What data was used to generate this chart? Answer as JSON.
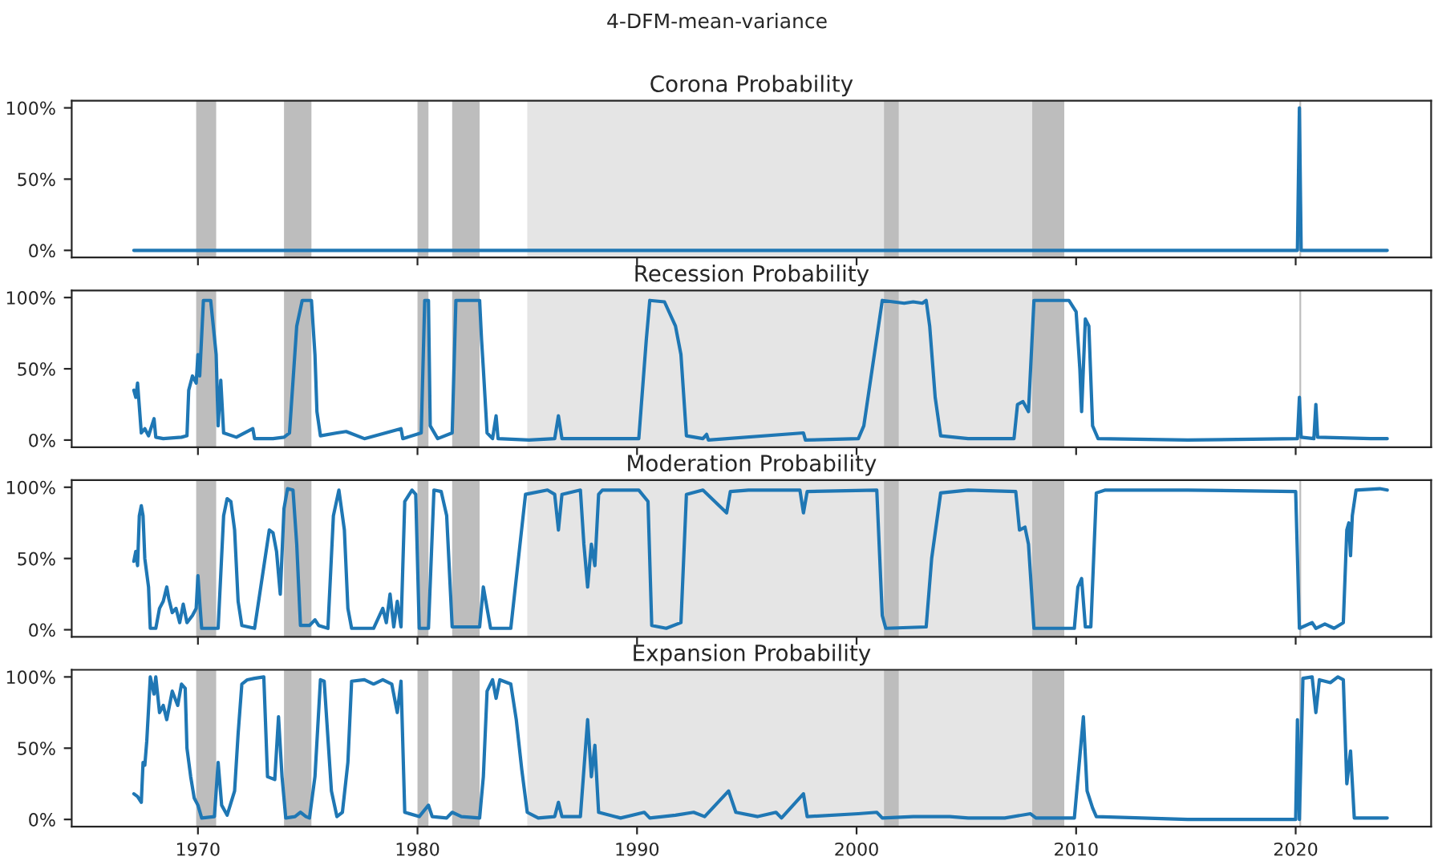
{
  "chart_data": [
    {
      "type": "line",
      "title": "Corona Probability",
      "annotations": [
        "4-DFM-mean-variance"
      ],
      "xlim": [
        1964.25,
        2026.17
      ],
      "xticks": [
        1970,
        1980,
        1990,
        2000,
        2010,
        2020
      ],
      "ylim": [
        -5,
        105
      ],
      "yticks": [
        {
          "value": 0,
          "label": "0%"
        },
        {
          "value": 50,
          "label": "50%"
        },
        {
          "value": 100,
          "label": "100%"
        }
      ],
      "tick_labels": "y",
      "grid": false,
      "legend": false,
      "series": [
        {
          "color": "#1f77b4",
          "x": [
            1967.08,
            2020.08,
            2020.17,
            2020.25,
            2024.17
          ],
          "values": [
            0,
            0,
            100,
            0,
            0
          ]
        }
      ],
      "bands": [
        {
          "axis": "x",
          "from": 1985.0,
          "to": 2008.0,
          "color": "#e5e5e5"
        },
        {
          "axis": "x",
          "from": 1969.92,
          "to": 1970.83,
          "color": "#bdbdbd"
        },
        {
          "axis": "x",
          "from": 1973.92,
          "to": 1975.17,
          "color": "#bdbdbd"
        },
        {
          "axis": "x",
          "from": 1980.0,
          "to": 1980.5,
          "color": "#bdbdbd"
        },
        {
          "axis": "x",
          "from": 1981.58,
          "to": 1982.83,
          "color": "#bdbdbd"
        },
        {
          "axis": "x",
          "from": 2001.25,
          "to": 2001.92,
          "color": "#bdbdbd"
        },
        {
          "axis": "x",
          "from": 2008.0,
          "to": 2009.46,
          "color": "#bdbdbd"
        },
        {
          "axis": "x",
          "from": 2020.17,
          "to": 2020.25,
          "color": "#bdbdbd"
        }
      ]
    },
    {
      "type": "line",
      "title": "Recession Probability",
      "xlim": [
        1964.25,
        2026.17
      ],
      "xticks": [
        1970,
        1980,
        1990,
        2000,
        2010,
        2020
      ],
      "ylim": [
        -5,
        105
      ],
      "yticks": [
        {
          "value": 0,
          "label": "0%"
        },
        {
          "value": 50,
          "label": "50%"
        },
        {
          "value": 100,
          "label": "100%"
        }
      ],
      "tick_labels": "y",
      "grid": false,
      "legend": false,
      "series": [
        {
          "color": "#1f77b4",
          "x": [
            1967.08,
            1967.17,
            1967.25,
            1967.42,
            1967.58,
            1967.75,
            1968.0,
            1968.08,
            1968.42,
            1969.25,
            1969.5,
            1969.58,
            1969.75,
            1969.92,
            1970.0,
            1970.08,
            1970.25,
            1970.58,
            1970.83,
            1970.92,
            1971.04,
            1971.17,
            1971.75,
            1972.5,
            1972.58,
            1973.42,
            1973.92,
            1974.17,
            1974.5,
            1974.75,
            1975.17,
            1975.33,
            1975.42,
            1975.58,
            1976.33,
            1976.75,
            1977.58,
            1979.25,
            1979.33,
            1980.17,
            1980.33,
            1980.5,
            1980.58,
            1980.92,
            1981.58,
            1981.75,
            1982.83,
            1982.92,
            1983.0,
            1983.17,
            1983.42,
            1983.58,
            1983.67,
            1985.08,
            1986.25,
            1986.42,
            1986.58,
            1988.0,
            1990.08,
            1990.42,
            1990.58,
            1991.25,
            1991.75,
            1992.0,
            1992.25,
            1993.0,
            1993.17,
            1993.25,
            1997.58,
            1997.67,
            2000.08,
            2000.33,
            2001.17,
            2002.17,
            2002.58,
            2003.0,
            2003.17,
            2003.33,
            2003.58,
            2003.83,
            2005.08,
            2007.17,
            2007.33,
            2007.58,
            2007.83,
            2008.08,
            2009.67,
            2010.0,
            2010.17,
            2010.25,
            2010.42,
            2010.58,
            2010.75,
            2011.0,
            2015.08,
            2020.08,
            2020.17,
            2020.25,
            2020.83,
            2020.92,
            2021.0,
            2023.42,
            2024.17
          ],
          "values": [
            35,
            30,
            40,
            5,
            8,
            3,
            15,
            2,
            1,
            2,
            3,
            35,
            45,
            40,
            60,
            45,
            98,
            98,
            60,
            10,
            42,
            5,
            2,
            8,
            1,
            1,
            2,
            5,
            80,
            98,
            98,
            60,
            20,
            3,
            5,
            6,
            1,
            8,
            1,
            5,
            98,
            98,
            10,
            1,
            5,
            98,
            98,
            70,
            50,
            5,
            1,
            17,
            1,
            0,
            1,
            17,
            1,
            1,
            1,
            70,
            98,
            97,
            80,
            60,
            3,
            1,
            4,
            0,
            5,
            0,
            1,
            10,
            98,
            96,
            97,
            96,
            98,
            80,
            30,
            3,
            1,
            1,
            25,
            27,
            20,
            98,
            98,
            90,
            50,
            20,
            85,
            80,
            10,
            1,
            0,
            1,
            30,
            2,
            1,
            25,
            2,
            1,
            1
          ]
        }
      ],
      "bands": [
        {
          "axis": "x",
          "from": 1985.0,
          "to": 2008.0,
          "color": "#e5e5e5"
        },
        {
          "axis": "x",
          "from": 1969.92,
          "to": 1970.83,
          "color": "#bdbdbd"
        },
        {
          "axis": "x",
          "from": 1973.92,
          "to": 1975.17,
          "color": "#bdbdbd"
        },
        {
          "axis": "x",
          "from": 1980.0,
          "to": 1980.5,
          "color": "#bdbdbd"
        },
        {
          "axis": "x",
          "from": 1981.58,
          "to": 1982.83,
          "color": "#bdbdbd"
        },
        {
          "axis": "x",
          "from": 2001.25,
          "to": 2001.92,
          "color": "#bdbdbd"
        },
        {
          "axis": "x",
          "from": 2008.0,
          "to": 2009.46,
          "color": "#bdbdbd"
        },
        {
          "axis": "x",
          "from": 2020.17,
          "to": 2020.25,
          "color": "#bdbdbd"
        }
      ]
    },
    {
      "type": "line",
      "title": "Moderation Probability",
      "xlim": [
        1964.25,
        2026.17
      ],
      "xticks": [
        1970,
        1980,
        1990,
        2000,
        2010,
        2020
      ],
      "ylim": [
        -5,
        105
      ],
      "yticks": [
        {
          "value": 0,
          "label": "0%"
        },
        {
          "value": 50,
          "label": "50%"
        },
        {
          "value": 100,
          "label": "100%"
        }
      ],
      "tick_labels": "y",
      "grid": false,
      "legend": false,
      "series": [
        {
          "color": "#1f77b4",
          "x": [
            1967.08,
            1967.17,
            1967.25,
            1967.33,
            1967.42,
            1967.5,
            1967.58,
            1967.75,
            1967.83,
            1968.08,
            1968.25,
            1968.42,
            1968.58,
            1968.67,
            1968.83,
            1969.0,
            1969.17,
            1969.33,
            1969.5,
            1969.75,
            1969.92,
            1970.0,
            1970.08,
            1970.17,
            1970.92,
            1971.17,
            1971.33,
            1971.5,
            1971.67,
            1971.83,
            1972.0,
            1972.58,
            1973.25,
            1973.42,
            1973.58,
            1973.75,
            1973.92,
            1974.08,
            1974.33,
            1974.5,
            1974.67,
            1975.08,
            1975.33,
            1975.5,
            1975.92,
            1976.17,
            1976.42,
            1976.67,
            1976.83,
            1977.0,
            1978.0,
            1978.42,
            1978.58,
            1978.75,
            1978.92,
            1979.08,
            1979.25,
            1979.42,
            1979.75,
            1979.92,
            1980.08,
            1980.5,
            1980.75,
            1981.08,
            1981.33,
            1981.58,
            1982.83,
            1983.0,
            1983.17,
            1983.33,
            1984.25,
            1984.67,
            1984.92,
            1985.92,
            1986.25,
            1986.42,
            1986.58,
            1987.42,
            1987.58,
            1987.75,
            1987.92,
            1988.08,
            1988.25,
            1988.42,
            1990.08,
            1990.5,
            1990.67,
            1991.33,
            1992.0,
            1992.25,
            1993.0,
            1994.08,
            1994.25,
            1995.08,
            1997.42,
            1997.58,
            1997.75,
            2000.92,
            2001.17,
            2001.33,
            2003.17,
            2003.42,
            2003.83,
            2005.08,
            2007.25,
            2007.42,
            2007.67,
            2007.83,
            2008.08,
            2009.92,
            2010.08,
            2010.25,
            2010.42,
            2010.67,
            2010.92,
            2011.33,
            2015.08,
            2020.0,
            2020.17,
            2020.75,
            2020.92,
            2021.33,
            2021.75,
            2022.17,
            2022.33,
            2022.42,
            2022.5,
            2022.58,
            2022.75,
            2023.83,
            2024.17
          ],
          "values": [
            48,
            55,
            45,
            80,
            87,
            80,
            50,
            30,
            1,
            1,
            15,
            20,
            30,
            22,
            12,
            15,
            5,
            18,
            5,
            10,
            15,
            38,
            20,
            1,
            1,
            80,
            92,
            90,
            70,
            20,
            3,
            1,
            70,
            68,
            55,
            25,
            85,
            99,
            98,
            60,
            3,
            3,
            7,
            3,
            1,
            80,
            98,
            70,
            15,
            1,
            1,
            15,
            5,
            25,
            2,
            20,
            2,
            90,
            98,
            95,
            1,
            1,
            98,
            97,
            80,
            2,
            2,
            30,
            15,
            1,
            1,
            60,
            95,
            98,
            95,
            70,
            95,
            98,
            60,
            30,
            60,
            45,
            95,
            98,
            98,
            90,
            3,
            1,
            5,
            95,
            98,
            82,
            97,
            98,
            98,
            82,
            97,
            98,
            10,
            1,
            2,
            50,
            96,
            98,
            97,
            70,
            72,
            60,
            1,
            1,
            30,
            36,
            2,
            2,
            96,
            98,
            98,
            97,
            1,
            5,
            1,
            4,
            1,
            5,
            70,
            75,
            52,
            80,
            98,
            99,
            98
          ]
        }
      ],
      "bands": [
        {
          "axis": "x",
          "from": 1985.0,
          "to": 2008.0,
          "color": "#e5e5e5"
        },
        {
          "axis": "x",
          "from": 1969.92,
          "to": 1970.83,
          "color": "#bdbdbd"
        },
        {
          "axis": "x",
          "from": 1973.92,
          "to": 1975.17,
          "color": "#bdbdbd"
        },
        {
          "axis": "x",
          "from": 1980.0,
          "to": 1980.5,
          "color": "#bdbdbd"
        },
        {
          "axis": "x",
          "from": 1981.58,
          "to": 1982.83,
          "color": "#bdbdbd"
        },
        {
          "axis": "x",
          "from": 2001.25,
          "to": 2001.92,
          "color": "#bdbdbd"
        },
        {
          "axis": "x",
          "from": 2008.0,
          "to": 2009.46,
          "color": "#bdbdbd"
        },
        {
          "axis": "x",
          "from": 2020.17,
          "to": 2020.25,
          "color": "#bdbdbd"
        }
      ]
    },
    {
      "type": "line",
      "title": "Expansion Probability",
      "xlim": [
        1964.25,
        2026.17
      ],
      "xticks": [
        1970,
        1980,
        1990,
        2000,
        2010,
        2020
      ],
      "ylim": [
        -5,
        105
      ],
      "yticks": [
        {
          "value": 0,
          "label": "0%"
        },
        {
          "value": 50,
          "label": "50%"
        },
        {
          "value": 100,
          "label": "100%"
        }
      ],
      "grid": false,
      "legend": false,
      "series": [
        {
          "color": "#1f77b4",
          "x": [
            1967.08,
            1967.25,
            1967.42,
            1967.5,
            1967.58,
            1967.67,
            1967.83,
            1968.0,
            1968.08,
            1968.25,
            1968.42,
            1968.58,
            1968.83,
            1969.08,
            1969.25,
            1969.42,
            1969.5,
            1969.67,
            1969.83,
            1970.0,
            1970.17,
            1970.75,
            1970.92,
            1971.08,
            1971.33,
            1971.67,
            1971.83,
            1972.0,
            1972.25,
            1972.58,
            1973.0,
            1973.17,
            1973.5,
            1973.67,
            1973.83,
            1974.0,
            1974.42,
            1974.67,
            1974.92,
            1975.08,
            1975.33,
            1975.58,
            1975.75,
            1976.08,
            1976.33,
            1976.58,
            1976.83,
            1977.0,
            1977.58,
            1978.0,
            1978.42,
            1978.83,
            1979.08,
            1979.25,
            1979.42,
            1980.08,
            1980.5,
            1980.67,
            1981.33,
            1981.58,
            1982.0,
            1982.83,
            1983.0,
            1983.17,
            1983.42,
            1983.58,
            1983.75,
            1984.25,
            1984.5,
            1984.75,
            1985.0,
            1985.5,
            1986.25,
            1986.42,
            1986.58,
            1987.42,
            1987.75,
            1987.92,
            1988.08,
            1988.25,
            1989.25,
            1990.33,
            1990.58,
            1991.75,
            1992.58,
            1993.08,
            1994.17,
            1994.5,
            1995.5,
            1996.33,
            1996.58,
            1997.58,
            1997.75,
            2000.08,
            2000.92,
            2001.17,
            2002.58,
            2004.25,
            2005.08,
            2006.75,
            2007.92,
            2008.17,
            2009.92,
            2010.33,
            2010.5,
            2010.75,
            2010.92,
            2015.08,
            2020.0,
            2020.08,
            2020.17,
            2020.33,
            2020.75,
            2020.92,
            2021.08,
            2021.58,
            2021.92,
            2022.17,
            2022.33,
            2022.5,
            2022.67,
            2023.42,
            2024.17
          ],
          "values": [
            18,
            16,
            12,
            40,
            38,
            55,
            100,
            88,
            100,
            75,
            80,
            70,
            90,
            80,
            95,
            92,
            50,
            30,
            15,
            10,
            1,
            2,
            40,
            10,
            3,
            20,
            60,
            95,
            98,
            99,
            100,
            30,
            28,
            72,
            30,
            1,
            2,
            5,
            2,
            1,
            30,
            98,
            97,
            20,
            2,
            5,
            40,
            97,
            98,
            95,
            98,
            95,
            75,
            97,
            5,
            2,
            10,
            2,
            1,
            5,
            2,
            1,
            30,
            90,
            98,
            85,
            98,
            95,
            70,
            35,
            5,
            1,
            2,
            12,
            2,
            2,
            70,
            30,
            52,
            5,
            1,
            5,
            1,
            3,
            5,
            2,
            20,
            5,
            2,
            5,
            1,
            18,
            2,
            4,
            5,
            1,
            2,
            2,
            1,
            1,
            4,
            1,
            1,
            72,
            20,
            8,
            2,
            0,
            0,
            70,
            0,
            99,
            100,
            75,
            98,
            96,
            100,
            98,
            25,
            48,
            1,
            1,
            1
          ]
        }
      ],
      "bands": [
        {
          "axis": "x",
          "from": 1985.0,
          "to": 2008.0,
          "color": "#e5e5e5"
        },
        {
          "axis": "x",
          "from": 1969.92,
          "to": 1970.83,
          "color": "#bdbdbd"
        },
        {
          "axis": "x",
          "from": 1973.92,
          "to": 1975.17,
          "color": "#bdbdbd"
        },
        {
          "axis": "x",
          "from": 1980.0,
          "to": 1980.5,
          "color": "#bdbdbd"
        },
        {
          "axis": "x",
          "from": 1981.58,
          "to": 1982.83,
          "color": "#bdbdbd"
        },
        {
          "axis": "x",
          "from": 2001.25,
          "to": 2001.92,
          "color": "#bdbdbd"
        },
        {
          "axis": "x",
          "from": 2008.0,
          "to": 2009.46,
          "color": "#bdbdbd"
        },
        {
          "axis": "x",
          "from": 2020.17,
          "to": 2020.25,
          "color": "#bdbdbd"
        }
      ]
    }
  ]
}
